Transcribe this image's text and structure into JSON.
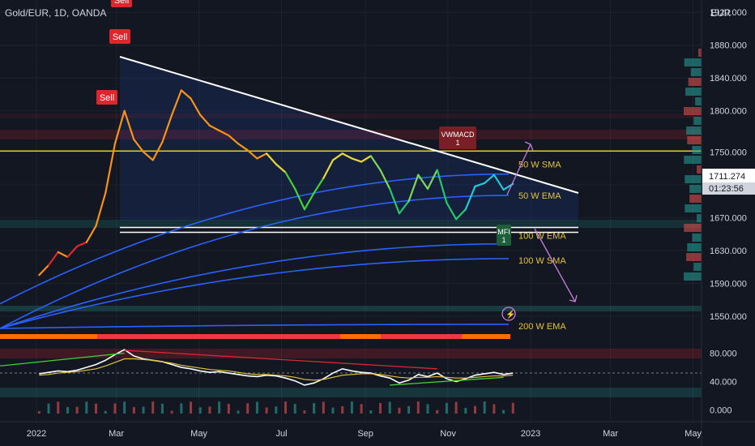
{
  "header": {
    "symbol_title": "Gold/EUR, 1D, OANDA",
    "currency": "EUR"
  },
  "colors": {
    "background": "#131722",
    "grid": "#1e222d",
    "axis_text": "#d1d4dc",
    "sell_red": "#e0262d",
    "trendline": "#ffffff",
    "ema_blue": "#2962ff",
    "sma_yellow": "#e5c33a",
    "price_tag_bg": "#ffffff",
    "timer_tag_bg": "#d1d4dc",
    "arrow_violet": "#c77ddb",
    "bar_up": "#26a69a",
    "bar_down": "#ef5350"
  },
  "chart_data": [
    {
      "type": "line",
      "title": "Gold/EUR, 1D, OANDA",
      "y_unit": "EUR",
      "ylim": [
        1535,
        1935
      ],
      "y_ticks": [
        "1920.000",
        "1880.000",
        "1840.000",
        "1800.000",
        "1750.000",
        "1710.000",
        "1670.000",
        "1630.000",
        "1590.000",
        "1550.000"
      ],
      "x_ticks": [
        "2022",
        "Mar",
        "May",
        "Jul",
        "Sep",
        "Nov",
        "2023",
        "Mar",
        "May"
      ],
      "last_price": "1711.274",
      "countdown": "01:23:56",
      "series": [
        {
          "name": "Price",
          "x": [
            "2022-01-03",
            "2022-01-10",
            "2022-01-17",
            "2022-01-24",
            "2022-01-31",
            "2022-02-07",
            "2022-02-14",
            "2022-02-21",
            "2022-02-28",
            "2022-03-07",
            "2022-03-14",
            "2022-03-21",
            "2022-03-28",
            "2022-04-04",
            "2022-04-11",
            "2022-04-18",
            "2022-04-25",
            "2022-05-02",
            "2022-05-09",
            "2022-05-16",
            "2022-05-23",
            "2022-05-30",
            "2022-06-06",
            "2022-06-13",
            "2022-06-20",
            "2022-06-27",
            "2022-07-04",
            "2022-07-11",
            "2022-07-18",
            "2022-07-25",
            "2022-08-01",
            "2022-08-08",
            "2022-08-15",
            "2022-08-22",
            "2022-08-29",
            "2022-09-05",
            "2022-09-12",
            "2022-09-19",
            "2022-09-26",
            "2022-10-03",
            "2022-10-10",
            "2022-10-17",
            "2022-10-24",
            "2022-10-31",
            "2022-11-07",
            "2022-11-14",
            "2022-11-21",
            "2022-11-28",
            "2022-12-05",
            "2022-12-12",
            "2022-12-19"
          ],
          "values": [
            1600,
            1612,
            1628,
            1622,
            1635,
            1640,
            1660,
            1700,
            1760,
            1800,
            1765,
            1750,
            1740,
            1762,
            1795,
            1825,
            1815,
            1795,
            1782,
            1776,
            1770,
            1760,
            1752,
            1742,
            1748,
            1735,
            1725,
            1705,
            1680,
            1700,
            1718,
            1740,
            1748,
            1742,
            1738,
            1745,
            1728,
            1705,
            1675,
            1690,
            1722,
            1705,
            1728,
            1688,
            1668,
            1680,
            1708,
            1712,
            1722,
            1704,
            1711
          ]
        }
      ],
      "lines": [
        {
          "name": "50 W SMA",
          "value": 1723
        },
        {
          "name": "50 W EMA",
          "value": 1697
        },
        {
          "name": "100 W EMA",
          "value": 1638
        },
        {
          "name": "100 W SMA",
          "value": 1620
        },
        {
          "name": "200 W EMA",
          "value": 1540
        }
      ],
      "horizontal_levels": [
        1751,
        1658,
        1652
      ],
      "signals": [
        {
          "label": "Sell",
          "date": "2022-02-21"
        },
        {
          "label": "Sell",
          "date": "2022-03-07"
        },
        {
          "label": "Sell",
          "date": "2022-03-07"
        },
        {
          "label": "VWMACD\n1",
          "date": "2022-11-07"
        },
        {
          "label": "MFI\n1",
          "date": "2022-12-19"
        }
      ]
    },
    {
      "type": "line",
      "title": "",
      "ylim": [
        -5,
        92
      ],
      "y_ticks": [
        "80.000",
        "40.000",
        "0.000"
      ],
      "series": [
        {
          "name": "",
          "values": [
            51,
            53,
            55,
            54,
            56,
            60,
            64,
            70,
            78,
            85,
            76,
            72,
            70,
            68,
            64,
            60,
            58,
            55,
            53,
            54,
            52,
            50,
            48,
            47,
            49,
            48,
            45,
            41,
            35,
            38,
            44,
            52,
            58,
            55,
            53,
            52,
            48,
            45,
            38,
            42,
            50,
            47,
            52,
            44,
            40,
            44,
            49,
            51,
            53,
            50,
            52
          ]
        },
        {
          "name": "",
          "values": [
            49,
            50,
            52,
            53,
            54,
            56,
            58,
            62,
            67,
            72,
            72,
            71,
            70,
            68,
            66,
            63,
            61,
            59,
            57,
            56,
            55,
            53,
            51,
            50,
            50,
            49,
            48,
            46,
            43,
            42,
            43,
            46,
            49,
            50,
            51,
            51,
            50,
            48,
            46,
            45,
            46,
            46,
            47,
            46,
            45,
            45,
            46,
            47,
            48,
            48,
            49
          ]
        }
      ]
    }
  ]
}
